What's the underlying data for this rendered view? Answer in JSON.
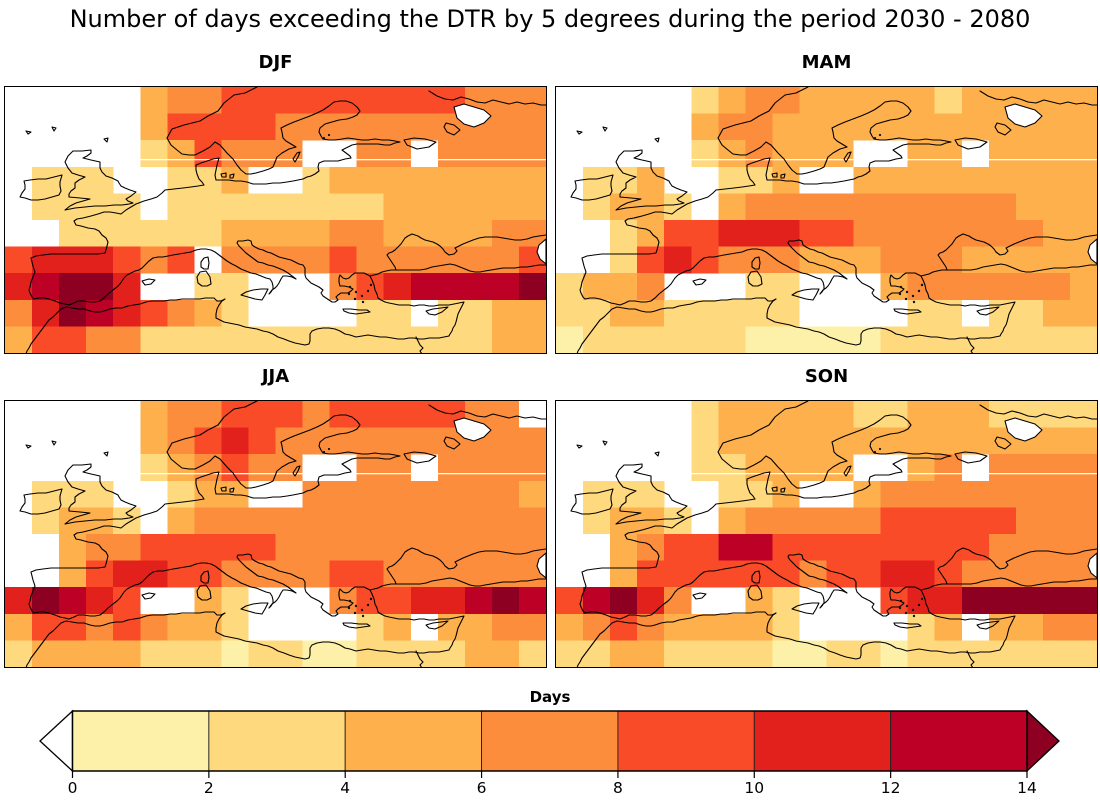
{
  "title": "Number of days exceeding the DTR by 5 degrees during the period 2030 - 2080",
  "panels": [
    {
      "id": "DJF",
      "label": "DJF"
    },
    {
      "id": "MAM",
      "label": "MAM"
    },
    {
      "id": "JJA",
      "label": "JJA"
    },
    {
      "id": "SON",
      "label": "SON"
    }
  ],
  "colorbar": {
    "title": "Days",
    "tick_labels": [
      "0",
      "2",
      "4",
      "6",
      "8",
      "10",
      "12",
      "14"
    ]
  },
  "chart_data": {
    "type": "heatmap",
    "title": "Number of days exceeding the DTR by 5 degrees during the period 2030 - 2080",
    "subplot_titles": [
      "DJF",
      "MAM",
      "JJA",
      "SON"
    ],
    "region": "Europe / Mediterranean map, coarse model grid",
    "grid_rows": 10,
    "grid_cols": 20,
    "colorbar_title": "Days",
    "colorbar_ticks": [
      "0",
      "2",
      "4",
      "6",
      "8",
      "10",
      "12",
      "14"
    ],
    "palette": [
      "#FFFFFF",
      "#FDF1A9",
      "#FED97D",
      "#FDB04C",
      "#FB8D3C",
      "#FA4B28",
      "#E3211C",
      "#BD0026",
      "#8E0021"
    ],
    "cell_value_encoding": {
      "0": "no data / masked (white)",
      "1": "0-2 days",
      "2": "2-4 days",
      "3": "4-6 days",
      "4": "6-8 days",
      "5": "8-10 days",
      "6": "10-12 days",
      "7": "12-14 days",
      "8": ">14 days (over color)"
    },
    "grids": {
      "DJF": [
        [
          0,
          0,
          0,
          0,
          0,
          3,
          4,
          4,
          5,
          5,
          5,
          5,
          5,
          5,
          5,
          5,
          5,
          4,
          4,
          4
        ],
        [
          0,
          0,
          0,
          0,
          0,
          3,
          5,
          5,
          5,
          5,
          4,
          4,
          4,
          4,
          4,
          4,
          4,
          4,
          4,
          4
        ],
        [
          0,
          0,
          0,
          0,
          0,
          2,
          3,
          5,
          4,
          4,
          4,
          0,
          0,
          4,
          4,
          0,
          4,
          4,
          4,
          4
        ],
        [
          0,
          2,
          2,
          2,
          0,
          0,
          2,
          2,
          3,
          0,
          0,
          2,
          3,
          3,
          3,
          3,
          3,
          3,
          3,
          3
        ],
        [
          0,
          2,
          2,
          2,
          2,
          0,
          2,
          2,
          2,
          2,
          2,
          2,
          2,
          2,
          3,
          3,
          3,
          3,
          3,
          3
        ],
        [
          0,
          0,
          2,
          2,
          2,
          2,
          2,
          2,
          3,
          3,
          3,
          3,
          4,
          4,
          3,
          3,
          3,
          3,
          4,
          4
        ],
        [
          5,
          6,
          6,
          6,
          5,
          4,
          5,
          0,
          4,
          4,
          4,
          4,
          5,
          4,
          4,
          4,
          4,
          4,
          4,
          5
        ],
        [
          6,
          7,
          8,
          8,
          6,
          0,
          0,
          2,
          2,
          0,
          0,
          0,
          4,
          5,
          6,
          7,
          7,
          7,
          7,
          8
        ],
        [
          4,
          6,
          8,
          7,
          6,
          5,
          4,
          3,
          2,
          0,
          0,
          0,
          0,
          2,
          2,
          0,
          2,
          2,
          3,
          3
        ],
        [
          3,
          5,
          5,
          4,
          4,
          2,
          2,
          2,
          2,
          2,
          2,
          2,
          2,
          2,
          2,
          2,
          2,
          2,
          3,
          3
        ]
      ],
      "MAM": [
        [
          0,
          0,
          0,
          0,
          0,
          2,
          3,
          4,
          4,
          3,
          3,
          3,
          3,
          3,
          2,
          3,
          3,
          3,
          3,
          3
        ],
        [
          0,
          0,
          0,
          0,
          0,
          3,
          4,
          4,
          3,
          3,
          3,
          3,
          3,
          3,
          3,
          3,
          3,
          3,
          3,
          3
        ],
        [
          0,
          0,
          0,
          0,
          0,
          2,
          3,
          4,
          3,
          3,
          3,
          0,
          0,
          3,
          3,
          0,
          3,
          3,
          3,
          3
        ],
        [
          0,
          2,
          2,
          3,
          0,
          0,
          2,
          2,
          3,
          0,
          0,
          3,
          3,
          3,
          3,
          3,
          3,
          3,
          3,
          3
        ],
        [
          0,
          2,
          3,
          3,
          2,
          0,
          3,
          4,
          4,
          4,
          4,
          4,
          4,
          4,
          4,
          4,
          4,
          3,
          3,
          3
        ],
        [
          0,
          0,
          2,
          3,
          5,
          5,
          6,
          6,
          6,
          5,
          5,
          4,
          4,
          4,
          4,
          4,
          4,
          4,
          3,
          3
        ],
        [
          0,
          0,
          2,
          5,
          6,
          5,
          4,
          4,
          4,
          3,
          3,
          3,
          4,
          4,
          4,
          3,
          3,
          3,
          3,
          3
        ],
        [
          2,
          3,
          3,
          4,
          0,
          0,
          0,
          2,
          2,
          0,
          0,
          0,
          3,
          4,
          4,
          4,
          4,
          4,
          4,
          3
        ],
        [
          2,
          2,
          3,
          3,
          2,
          2,
          2,
          2,
          2,
          0,
          0,
          0,
          0,
          2,
          2,
          0,
          2,
          2,
          3,
          3
        ],
        [
          1,
          2,
          2,
          2,
          2,
          2,
          2,
          1,
          1,
          1,
          1,
          1,
          2,
          2,
          2,
          2,
          2,
          2,
          2,
          2
        ]
      ],
      "JJA": [
        [
          0,
          0,
          0,
          0,
          0,
          3,
          4,
          4,
          5,
          5,
          5,
          4,
          5,
          5,
          5,
          5,
          5,
          4,
          4,
          0
        ],
        [
          0,
          0,
          0,
          0,
          0,
          3,
          4,
          5,
          6,
          5,
          4,
          4,
          4,
          4,
          4,
          4,
          4,
          4,
          4,
          4
        ],
        [
          0,
          0,
          0,
          0,
          0,
          2,
          3,
          4,
          5,
          4,
          4,
          0,
          0,
          4,
          4,
          0,
          4,
          4,
          4,
          4
        ],
        [
          0,
          2,
          2,
          2,
          0,
          0,
          2,
          3,
          3,
          0,
          0,
          4,
          4,
          4,
          4,
          4,
          4,
          4,
          4,
          3
        ],
        [
          0,
          2,
          3,
          3,
          2,
          0,
          3,
          4,
          4,
          4,
          4,
          4,
          4,
          4,
          4,
          4,
          4,
          4,
          4,
          4
        ],
        [
          0,
          0,
          3,
          4,
          4,
          5,
          5,
          5,
          5,
          5,
          4,
          4,
          4,
          4,
          4,
          4,
          4,
          4,
          4,
          4
        ],
        [
          0,
          0,
          3,
          5,
          6,
          6,
          5,
          5,
          4,
          4,
          4,
          4,
          5,
          5,
          4,
          4,
          4,
          4,
          4,
          4
        ],
        [
          6,
          8,
          7,
          6,
          5,
          0,
          0,
          3,
          2,
          0,
          0,
          0,
          4,
          5,
          5,
          6,
          6,
          7,
          8,
          7
        ],
        [
          3,
          5,
          5,
          4,
          5,
          4,
          3,
          3,
          2,
          0,
          0,
          0,
          0,
          2,
          3,
          0,
          3,
          3,
          4,
          4
        ],
        [
          2,
          3,
          3,
          3,
          3,
          2,
          2,
          2,
          1,
          2,
          2,
          1,
          1,
          2,
          2,
          2,
          2,
          3,
          3,
          2
        ]
      ],
      "SON": [
        [
          0,
          0,
          0,
          0,
          0,
          2,
          3,
          3,
          3,
          3,
          3,
          2,
          2,
          3,
          3,
          3,
          2,
          2,
          2,
          2
        ],
        [
          0,
          0,
          0,
          0,
          0,
          2,
          3,
          3,
          3,
          3,
          3,
          3,
          3,
          3,
          3,
          3,
          3,
          3,
          3,
          3
        ],
        [
          0,
          0,
          0,
          0,
          0,
          2,
          2,
          3,
          3,
          3,
          3,
          0,
          0,
          3,
          4,
          0,
          4,
          4,
          4,
          4
        ],
        [
          0,
          2,
          2,
          2,
          0,
          0,
          2,
          2,
          3,
          0,
          0,
          3,
          4,
          4,
          4,
          4,
          4,
          4,
          4,
          4
        ],
        [
          0,
          2,
          3,
          3,
          2,
          0,
          3,
          4,
          4,
          4,
          4,
          4,
          5,
          5,
          5,
          5,
          5,
          4,
          4,
          4
        ],
        [
          0,
          0,
          3,
          4,
          5,
          5,
          7,
          7,
          5,
          5,
          5,
          5,
          5,
          5,
          5,
          5,
          4,
          4,
          4,
          4
        ],
        [
          0,
          0,
          3,
          5,
          5,
          5,
          5,
          5,
          5,
          4,
          5,
          5,
          6,
          6,
          5,
          4,
          4,
          4,
          4,
          4
        ],
        [
          5,
          7,
          8,
          6,
          4,
          0,
          0,
          3,
          2,
          0,
          0,
          0,
          5,
          6,
          6,
          8,
          8,
          8,
          8,
          8
        ],
        [
          3,
          4,
          5,
          4,
          3,
          3,
          3,
          3,
          2,
          0,
          0,
          0,
          0,
          2,
          3,
          0,
          3,
          3,
          4,
          4
        ],
        [
          2,
          2,
          3,
          3,
          2,
          2,
          2,
          2,
          1,
          1,
          2,
          2,
          1,
          2,
          2,
          2,
          2,
          2,
          2,
          2
        ]
      ]
    }
  }
}
